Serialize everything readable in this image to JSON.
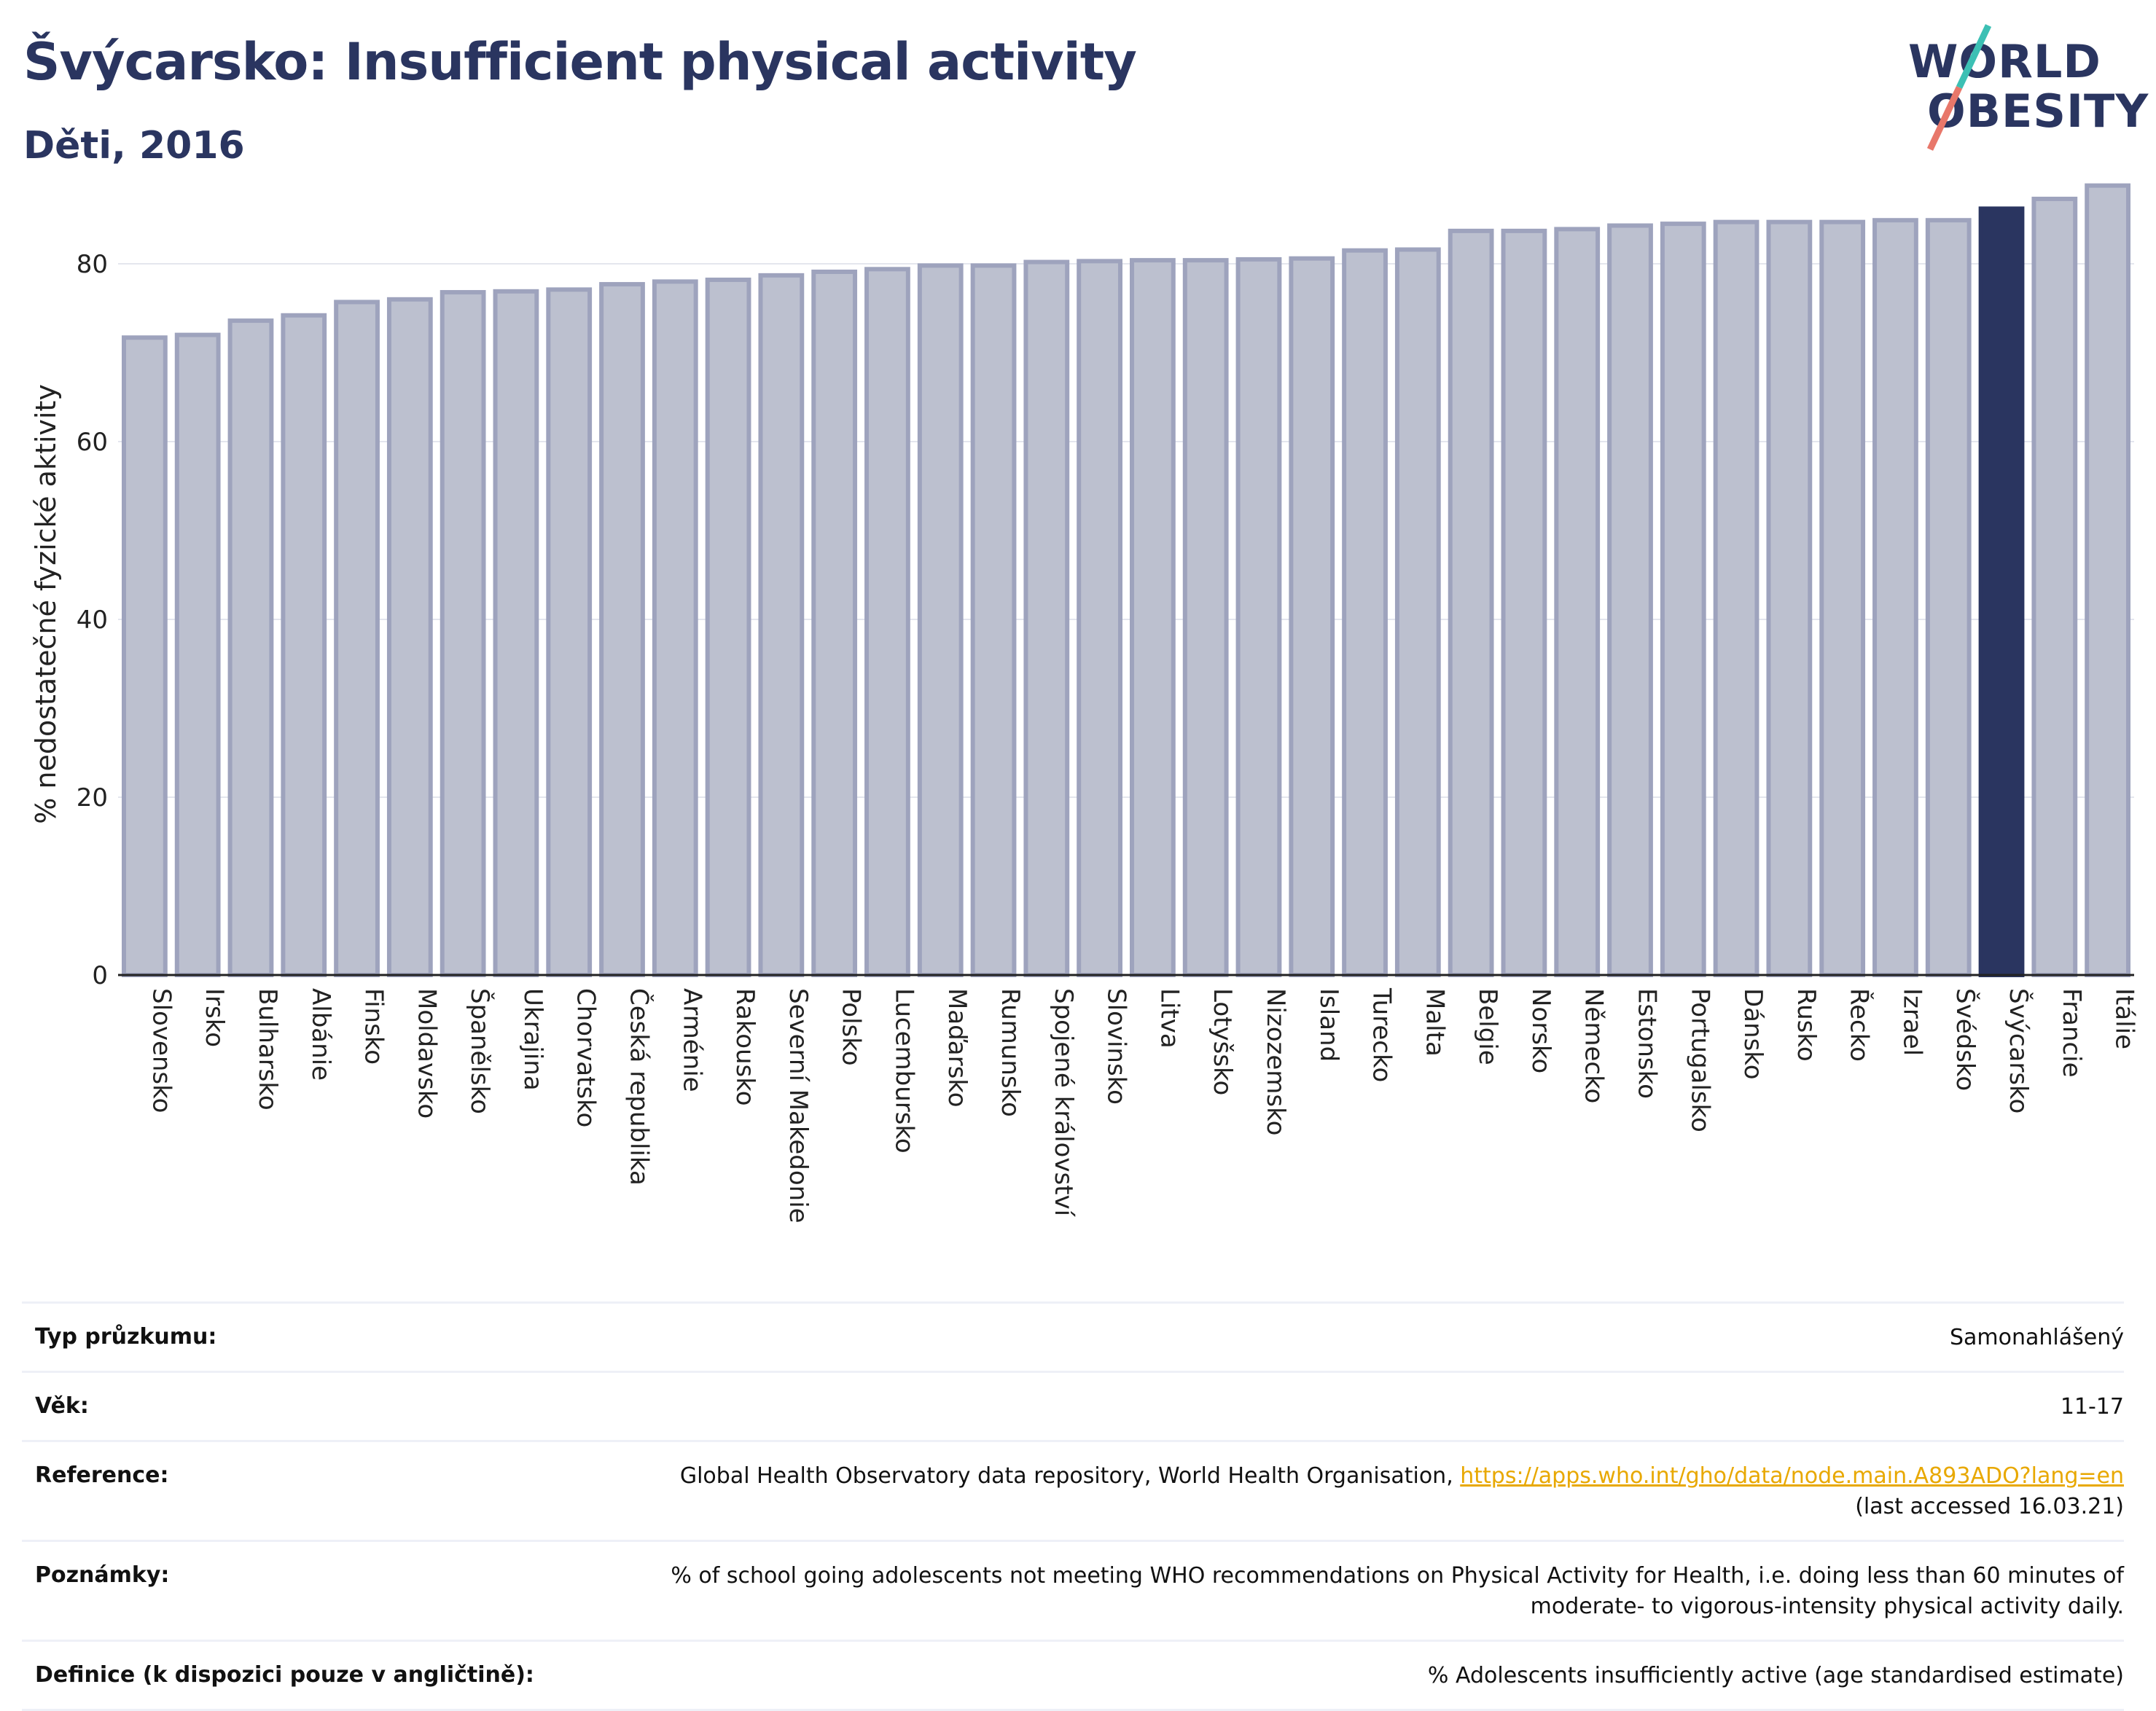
{
  "header": {
    "title": "Švýcarsko: Insufficient physical activity",
    "subtitle": "Děti, 2016"
  },
  "logo": {
    "line1": "WORLD",
    "line2": "OBESITY"
  },
  "colors": {
    "bar_default": "#bcc0cf",
    "bar_default_border": "#9ea3bd",
    "bar_highlight": "#2a3560",
    "title": "#2a3560",
    "link": "#e8a800",
    "logo_slash_top": "#3cc0b4",
    "logo_slash_bottom": "#e8776a"
  },
  "chart_data": {
    "type": "bar",
    "title": "Švýcarsko: Insufficient physical activity",
    "subtitle": "Děti, 2016",
    "xlabel": "",
    "ylabel": "% nedostatečné fyzické aktivity",
    "ylim": [
      0,
      90
    ],
    "yticks": [
      0,
      20,
      40,
      60,
      80
    ],
    "grid": true,
    "highlight": "Švýcarsko",
    "categories": [
      "Slovensko",
      "Irsko",
      "Bulharsko",
      "Albánie",
      "Finsko",
      "Moldavsko",
      "Španělsko",
      "Ukrajina",
      "Chorvatsko",
      "Česká republika",
      "Arménie",
      "Rakousko",
      "Severní Makedonie",
      "Polsko",
      "Lucembursko",
      "Maďarsko",
      "Rumunsko",
      "Spojené království",
      "Slovinsko",
      "Litva",
      "Lotyšsko",
      "Nizozemsko",
      "Island",
      "Turecko",
      "Malta",
      "Belgie",
      "Norsko",
      "Německo",
      "Estonsko",
      "Portugalsko",
      "Dánsko",
      "Rusko",
      "Řecko",
      "Izrael",
      "Švédsko",
      "Švýcarsko",
      "Francie",
      "Itálie"
    ],
    "values": [
      71.7,
      72.0,
      73.6,
      74.2,
      75.7,
      76.0,
      76.8,
      76.9,
      77.1,
      77.7,
      78.0,
      78.2,
      78.7,
      79.1,
      79.4,
      79.8,
      79.8,
      80.2,
      80.3,
      80.4,
      80.4,
      80.5,
      80.6,
      81.5,
      81.6,
      83.7,
      83.7,
      83.9,
      84.3,
      84.5,
      84.7,
      84.7,
      84.7,
      84.9,
      84.9,
      86.2,
      87.3,
      88.8
    ]
  },
  "info_table": {
    "rows": [
      {
        "key": "Typ průzkumu:",
        "value": "Samonahlášený"
      },
      {
        "key": "Věk:",
        "value": "11-17"
      },
      {
        "key": "Reference:",
        "value": "Global Health Observatory data repository, World Health Organisation, ",
        "link": "https://apps.who.int/gho/data/node.main.A893ADO?lang=en",
        "value_after": "(last accessed 16.03.21)"
      },
      {
        "key": "Poznámky:",
        "value": "% of school going adolescents not meeting WHO recommendations on Physical Activity for Health, i.e. doing less than 60 minutes of moderate- to vigorous-intensity physical activity daily."
      },
      {
        "key": "Definice (k dispozici pouze v angličtině):",
        "value": "% Adolescents insufficiently active (age standardised estimate)"
      }
    ]
  }
}
